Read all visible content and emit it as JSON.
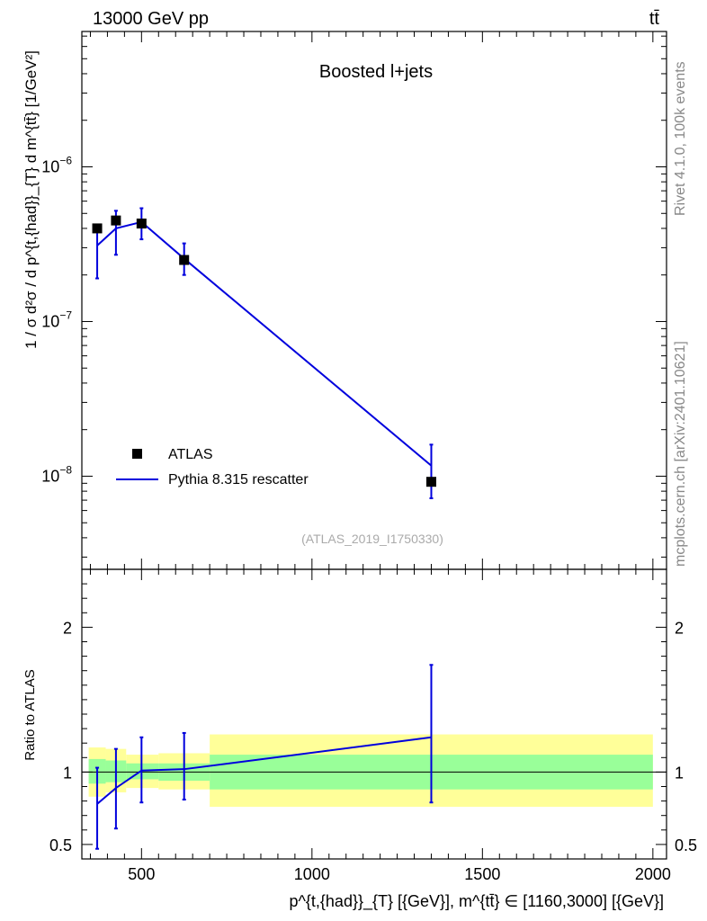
{
  "header": {
    "energy": "13000 GeV pp",
    "process": "tt̄"
  },
  "side_labels": {
    "rivet": "Rivet 4.1.0,  100k events",
    "source": "mcplots.cern.ch [arXiv:2401.10621]"
  },
  "chart_data": {
    "type": "scatter",
    "title": "Boosted l+jets",
    "analysis_id": "(ATLAS_2019_I1750330)",
    "xlabel": "p^{t,{had}}_{T} [{GeV}], m^{tt̄} ∈ [1160,3000] [{GeV}]",
    "ylabel": "1 / σ d²σ / d p^{t,{had}}_{T} d m^{tt̄} [1/GeV²]",
    "xlim": [
      325,
      2040
    ],
    "ylim": [
      2.5e-09,
      7.5e-06
    ],
    "yscale": "log",
    "xticks": [
      500,
      1000,
      1500,
      2000
    ],
    "yticks_labels": [
      "10^{-8}",
      "10^{-7}",
      "10^{-6}"
    ],
    "legend": {
      "position": "bottom-left",
      "entries": [
        "ATLAS",
        "Pythia 8.315 rescatter"
      ]
    },
    "series": [
      {
        "name": "ATLAS",
        "marker": "square",
        "color": "#000000",
        "points": [
          {
            "x": 370,
            "y": 4e-07
          },
          {
            "x": 425,
            "y": 4.5e-07
          },
          {
            "x": 500,
            "y": 4.3e-07
          },
          {
            "x": 625,
            "y": 2.5e-07
          },
          {
            "x": 1350,
            "y": 9.2e-09
          }
        ]
      },
      {
        "name": "Pythia 8.315 rescatter",
        "marker": "line",
        "color": "#0000dd",
        "points": [
          {
            "x": 370,
            "y": 3.1e-07,
            "ylo": 1.9e-07,
            "yhi": 4e-07
          },
          {
            "x": 425,
            "y": 4e-07,
            "ylo": 2.7e-07,
            "yhi": 5.2e-07
          },
          {
            "x": 500,
            "y": 4.4e-07,
            "ylo": 3.4e-07,
            "yhi": 5.4e-07
          },
          {
            "x": 625,
            "y": 2.55e-07,
            "ylo": 2e-07,
            "yhi": 3.2e-07
          },
          {
            "x": 1350,
            "y": 1.17e-08,
            "ylo": 7.2e-09,
            "yhi": 1.6e-08
          }
        ]
      }
    ],
    "ratio": {
      "ylabel": "Ratio to ATLAS",
      "ylim": [
        0.4,
        2.4
      ],
      "yticks": [
        0.5,
        1,
        2
      ],
      "bands": [
        {
          "x0": 345,
          "x1": 395,
          "stat_lo": 0.92,
          "stat_hi": 1.09,
          "tot_lo": 0.83,
          "tot_hi": 1.17
        },
        {
          "x0": 395,
          "x1": 455,
          "stat_lo": 0.93,
          "stat_hi": 1.08,
          "tot_lo": 0.86,
          "tot_hi": 1.16
        },
        {
          "x0": 455,
          "x1": 550,
          "stat_lo": 0.95,
          "stat_hi": 1.06,
          "tot_lo": 0.89,
          "tot_hi": 1.12
        },
        {
          "x0": 550,
          "x1": 700,
          "stat_lo": 0.94,
          "stat_hi": 1.06,
          "tot_lo": 0.88,
          "tot_hi": 1.13
        },
        {
          "x0": 700,
          "x1": 2000,
          "stat_lo": 0.88,
          "stat_hi": 1.12,
          "tot_lo": 0.76,
          "tot_hi": 1.26
        }
      ],
      "points": [
        {
          "x": 370,
          "y": 0.78,
          "ylo": 0.47,
          "yhi": 1.03
        },
        {
          "x": 425,
          "y": 0.89,
          "ylo": 0.61,
          "yhi": 1.16
        },
        {
          "x": 500,
          "y": 1.01,
          "ylo": 0.79,
          "yhi": 1.24
        },
        {
          "x": 625,
          "y": 1.02,
          "ylo": 0.81,
          "yhi": 1.27
        },
        {
          "x": 1350,
          "y": 1.24,
          "ylo": 0.79,
          "yhi": 1.74
        }
      ]
    }
  }
}
